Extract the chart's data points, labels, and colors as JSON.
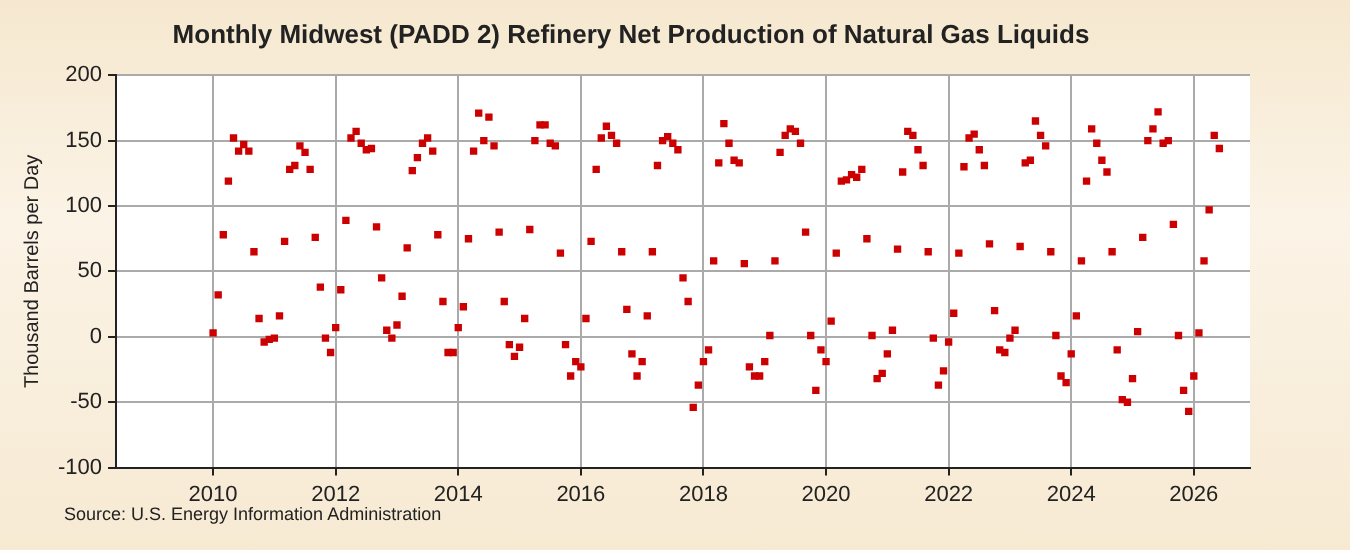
{
  "chart_data": {
    "type": "scatter",
    "title": "Monthly Midwest (PADD 2) Refinery Net Production of Natural Gas Liquids",
    "ylabel": "Thousand Barrels per Day",
    "annotations": [
      "Source: U.S. Energy Information Administration"
    ],
    "x": [
      "2010-01",
      "2010-02",
      "2010-03",
      "2010-04",
      "2010-05",
      "2010-06",
      "2010-07",
      "2010-08",
      "2010-09",
      "2010-10",
      "2010-11",
      "2010-12",
      "2011-01",
      "2011-02",
      "2011-03",
      "2011-04",
      "2011-05",
      "2011-06",
      "2011-07",
      "2011-08",
      "2011-09",
      "2011-10",
      "2011-11",
      "2011-12",
      "2012-01",
      "2012-02",
      "2012-03",
      "2012-04",
      "2012-05",
      "2012-06",
      "2012-07",
      "2012-08",
      "2012-09",
      "2012-10",
      "2012-11",
      "2012-12",
      "2013-01",
      "2013-02",
      "2013-03",
      "2013-04",
      "2013-05",
      "2013-06",
      "2013-07",
      "2013-08",
      "2013-09",
      "2013-10",
      "2013-11",
      "2013-12",
      "2014-01",
      "2014-02",
      "2014-03",
      "2014-04",
      "2014-05",
      "2014-06",
      "2014-07",
      "2014-08",
      "2014-09",
      "2014-10",
      "2014-11",
      "2014-12",
      "2015-01",
      "2015-02",
      "2015-03",
      "2015-04",
      "2015-05",
      "2015-06",
      "2015-07",
      "2015-08",
      "2015-09",
      "2015-10",
      "2015-11",
      "2015-12",
      "2016-01",
      "2016-02",
      "2016-03",
      "2016-04",
      "2016-05",
      "2016-06",
      "2016-07",
      "2016-08",
      "2016-09",
      "2016-10",
      "2016-11",
      "2016-12",
      "2017-01",
      "2017-02",
      "2017-03",
      "2017-04",
      "2017-05",
      "2017-06",
      "2017-07",
      "2017-08",
      "2017-09",
      "2017-10",
      "2017-11",
      "2017-12",
      "2018-01",
      "2018-02",
      "2018-03",
      "2018-04",
      "2018-05",
      "2018-06",
      "2018-07",
      "2018-08",
      "2018-09",
      "2018-10",
      "2018-11",
      "2018-12",
      "2019-01",
      "2019-02",
      "2019-03",
      "2019-04",
      "2019-05",
      "2019-06",
      "2019-07",
      "2019-08",
      "2019-09",
      "2019-10",
      "2019-11",
      "2019-12",
      "2020-01",
      "2020-02",
      "2020-03",
      "2020-04",
      "2020-05",
      "2020-06",
      "2020-07",
      "2020-08",
      "2020-09",
      "2020-10",
      "2020-11",
      "2020-12",
      "2021-01",
      "2021-02",
      "2021-03",
      "2021-04",
      "2021-05",
      "2021-06",
      "2021-07",
      "2021-08",
      "2021-09",
      "2021-10",
      "2021-11",
      "2021-12",
      "2022-01",
      "2022-02",
      "2022-03",
      "2022-04",
      "2022-05",
      "2022-06",
      "2022-07",
      "2022-08",
      "2022-09",
      "2022-10",
      "2022-11",
      "2022-12",
      "2023-01",
      "2023-02",
      "2023-03",
      "2023-04",
      "2023-05",
      "2023-06",
      "2023-07",
      "2023-08",
      "2023-09",
      "2023-10",
      "2023-11",
      "2023-12",
      "2024-01",
      "2024-02",
      "2024-03",
      "2024-04",
      "2024-05",
      "2024-06",
      "2024-07",
      "2024-08",
      "2024-09",
      "2024-10",
      "2024-11",
      "2024-12",
      "2025-01",
      "2025-02",
      "2025-03",
      "2025-04",
      "2025-05",
      "2025-06",
      "2025-07",
      "2025-08",
      "2025-09",
      "2025-10",
      "2025-11",
      "2025-12",
      "2026-01",
      "2026-02",
      "2026-03",
      "2026-04",
      "2026-05",
      "2026-06"
    ],
    "series": [
      {
        "color": "#cc0000",
        "values": [
          3,
          32,
          78,
          119,
          152,
          142,
          147,
          142,
          65,
          14,
          -4,
          -2,
          -1,
          16,
          73,
          128,
          131,
          146,
          141,
          128,
          76,
          38,
          -1,
          -12,
          7,
          36,
          89,
          152,
          157,
          148,
          143,
          144,
          84,
          45,
          5,
          -1,
          9,
          31,
          68,
          127,
          137,
          148,
          152,
          142,
          78,
          27,
          -12,
          -12,
          7,
          23,
          75,
          142,
          171,
          150,
          168,
          146,
          80,
          27,
          -6,
          -15,
          -8,
          14,
          82,
          150,
          162,
          162,
          148,
          146,
          64,
          -6,
          -30,
          -19,
          -23,
          14,
          73,
          128,
          152,
          161,
          154,
          148,
          65,
          21,
          -13,
          -30,
          -19,
          16,
          65,
          131,
          150,
          153,
          148,
          143,
          45,
          27,
          -54,
          -37,
          -19,
          -10,
          58,
          133,
          163,
          148,
          135,
          133,
          56,
          -23,
          -30,
          -30,
          -19,
          1,
          58,
          141,
          154,
          159,
          157,
          148,
          80,
          1,
          -41,
          -10,
          -19,
          12,
          64,
          119,
          120,
          124,
          122,
          128,
          75,
          1,
          -32,
          -28,
          -13,
          5,
          67,
          126,
          157,
          154,
          143,
          131,
          65,
          -1,
          -37,
          -26,
          -4,
          18,
          64,
          130,
          152,
          155,
          143,
          131,
          71,
          20,
          -10,
          -12,
          -1,
          5,
          69,
          133,
          135,
          165,
          154,
          146,
          65,
          1,
          -30,
          -35,
          -13,
          16,
          58,
          119,
          159,
          148,
          135,
          126,
          65,
          -10,
          -48,
          -50,
          -32,
          4,
          76,
          150,
          159,
          172,
          148,
          150,
          86,
          1,
          -41,
          -57,
          -30,
          3,
          58,
          97,
          154,
          144
        ]
      }
    ],
    "xlim": [
      "2008-06",
      "2026-12"
    ],
    "xticks": [
      "2010",
      "2012",
      "2014",
      "2016",
      "2018",
      "2020",
      "2022",
      "2024",
      "2026"
    ],
    "ylim": [
      -100,
      200
    ],
    "yticks": [
      -100,
      -50,
      0,
      50,
      100,
      150,
      200
    ],
    "grid": true,
    "marker": "square",
    "legend": false
  }
}
